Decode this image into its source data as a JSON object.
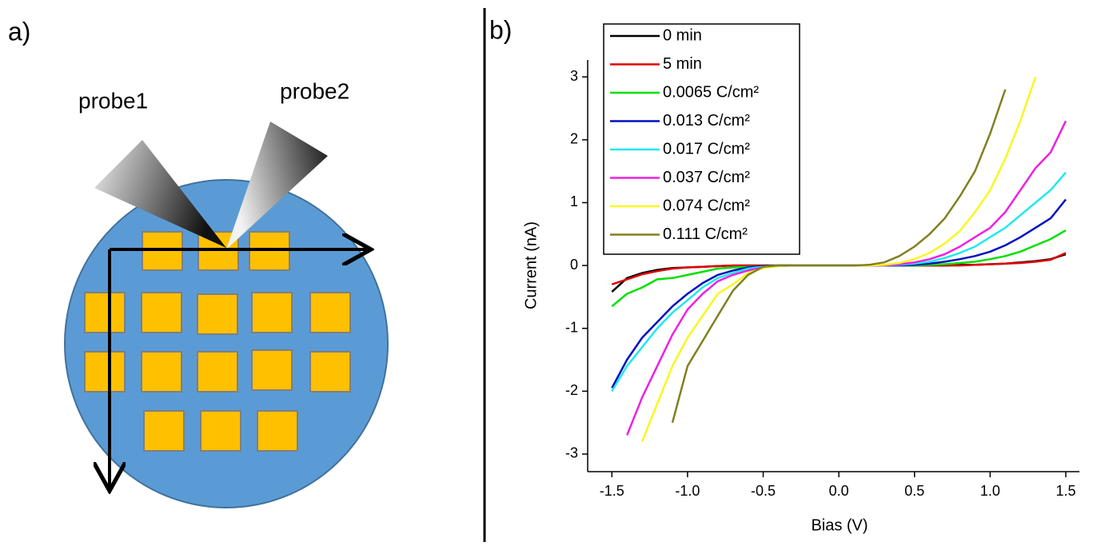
{
  "panel_labels": [
    "a)",
    "b)"
  ],
  "diagram": {
    "probes": [
      "probe1",
      "probe2"
    ]
  },
  "chart_data": {
    "type": "line",
    "xlabel": "Bias (V)",
    "ylabel": "Current (nA)",
    "xlim": [
      -1.66,
      1.59
    ],
    "ylim": [
      -3.28,
      3.27
    ],
    "xticks": [
      -1.5,
      {
        "value": -1,
        "label": "-1.0"
      },
      -0.5,
      {
        "value": 0,
        "label": "0.0"
      },
      0.5,
      {
        "value": 1,
        "label": "1.0"
      },
      1.5
    ],
    "yticks": [
      -3,
      -2,
      -1,
      0,
      1,
      2,
      3
    ],
    "legend": "upper left",
    "x": [
      -1.5,
      -1.4,
      -1.3,
      -1.2,
      -1.1,
      -1.0,
      -0.9,
      -0.8,
      -0.7,
      -0.6,
      -0.5,
      -0.4,
      -0.3,
      -0.2,
      -0.1,
      0,
      0.1,
      0.2,
      0.3,
      0.4,
      0.5,
      0.6,
      0.7,
      0.8,
      0.9,
      1.0,
      1.1,
      1.2,
      1.3,
      1.4,
      1.5
    ],
    "series": [
      {
        "name": "0 min",
        "color": "#000000",
        "values": [
          -0.42,
          -0.2,
          -0.12,
          -0.07,
          -0.04,
          -0.03,
          -0.02,
          -0.01,
          0,
          0,
          0,
          0,
          0,
          0,
          0,
          0,
          0,
          0,
          0,
          0,
          0,
          0,
          0,
          0.01,
          0.01,
          0.02,
          0.03,
          0.05,
          0.07,
          0.1,
          0.18
        ]
      },
      {
        "name": "5 min",
        "color": "#e00000",
        "values": [
          -0.3,
          -0.22,
          -0.14,
          -0.09,
          -0.05,
          -0.03,
          -0.02,
          -0.01,
          0,
          0,
          0,
          0,
          0,
          0,
          0,
          0,
          0,
          0,
          0,
          0,
          0,
          0,
          0,
          0,
          0.01,
          0.02,
          0.03,
          0.04,
          0.06,
          0.09,
          0.2
        ]
      },
      {
        "name": "0.0065 C/cm²",
        "color": "#00e000",
        "values": [
          -0.65,
          -0.45,
          -0.35,
          -0.22,
          -0.2,
          -0.15,
          -0.1,
          -0.05,
          -0.03,
          -0.02,
          -0.01,
          0,
          0,
          0,
          0,
          0,
          0,
          0,
          0,
          0,
          0,
          0.01,
          0.02,
          0.04,
          0.06,
          0.1,
          0.15,
          0.22,
          0.32,
          0.42,
          0.56
        ]
      },
      {
        "name": "0.013 C/cm²",
        "color": "#0010c0",
        "values": [
          -1.95,
          -1.5,
          -1.15,
          -0.9,
          -0.65,
          -0.45,
          -0.28,
          -0.15,
          -0.08,
          -0.03,
          -0.01,
          0,
          0,
          0,
          0,
          0,
          0,
          0,
          0,
          0,
          0.01,
          0.03,
          0.06,
          0.1,
          0.15,
          0.22,
          0.32,
          0.45,
          0.6,
          0.75,
          1.05
        ]
      },
      {
        "name": "0.017 C/cm²",
        "color": "#20e8f0",
        "values": [
          -2.0,
          -1.6,
          -1.3,
          -1.0,
          -0.75,
          -0.55,
          -0.35,
          -0.2,
          -0.12,
          -0.05,
          -0.02,
          0,
          0,
          0,
          0,
          0,
          0,
          0,
          0,
          0.01,
          0.03,
          0.06,
          0.12,
          0.2,
          0.3,
          0.45,
          0.6,
          0.8,
          1.0,
          1.2,
          1.48
        ]
      },
      {
        "name": "0.037 C/cm²",
        "color": "#f020e0",
        "values": [
          null,
          -2.7,
          -2.1,
          -1.6,
          -1.1,
          -0.7,
          -0.45,
          -0.25,
          -0.15,
          -0.08,
          -0.03,
          -0.01,
          0,
          0,
          0,
          0,
          0,
          0,
          0,
          0.02,
          0.05,
          0.1,
          0.18,
          0.3,
          0.45,
          0.6,
          0.85,
          1.2,
          1.55,
          1.8,
          2.3
        ]
      },
      {
        "name": "0.074 C/cm²",
        "color": "#f8f820",
        "values": [
          null,
          null,
          -2.8,
          -2.2,
          -1.6,
          -1.15,
          -0.8,
          -0.45,
          -0.3,
          -0.12,
          -0.04,
          -0.01,
          0,
          0,
          0,
          0,
          0,
          0,
          0.01,
          0.04,
          0.1,
          0.2,
          0.35,
          0.55,
          0.85,
          1.2,
          1.7,
          2.3,
          3.0,
          null,
          null
        ]
      },
      {
        "name": "0.111 C/cm²",
        "color": "#808020",
        "values": [
          null,
          null,
          null,
          null,
          -2.5,
          -1.6,
          -1.2,
          -0.8,
          -0.4,
          -0.15,
          -0.02,
          0,
          0,
          0,
          0,
          0,
          0,
          0.01,
          0.05,
          0.15,
          0.3,
          0.5,
          0.75,
          1.1,
          1.5,
          2.1,
          2.8,
          null,
          null,
          null,
          null
        ]
      }
    ]
  }
}
